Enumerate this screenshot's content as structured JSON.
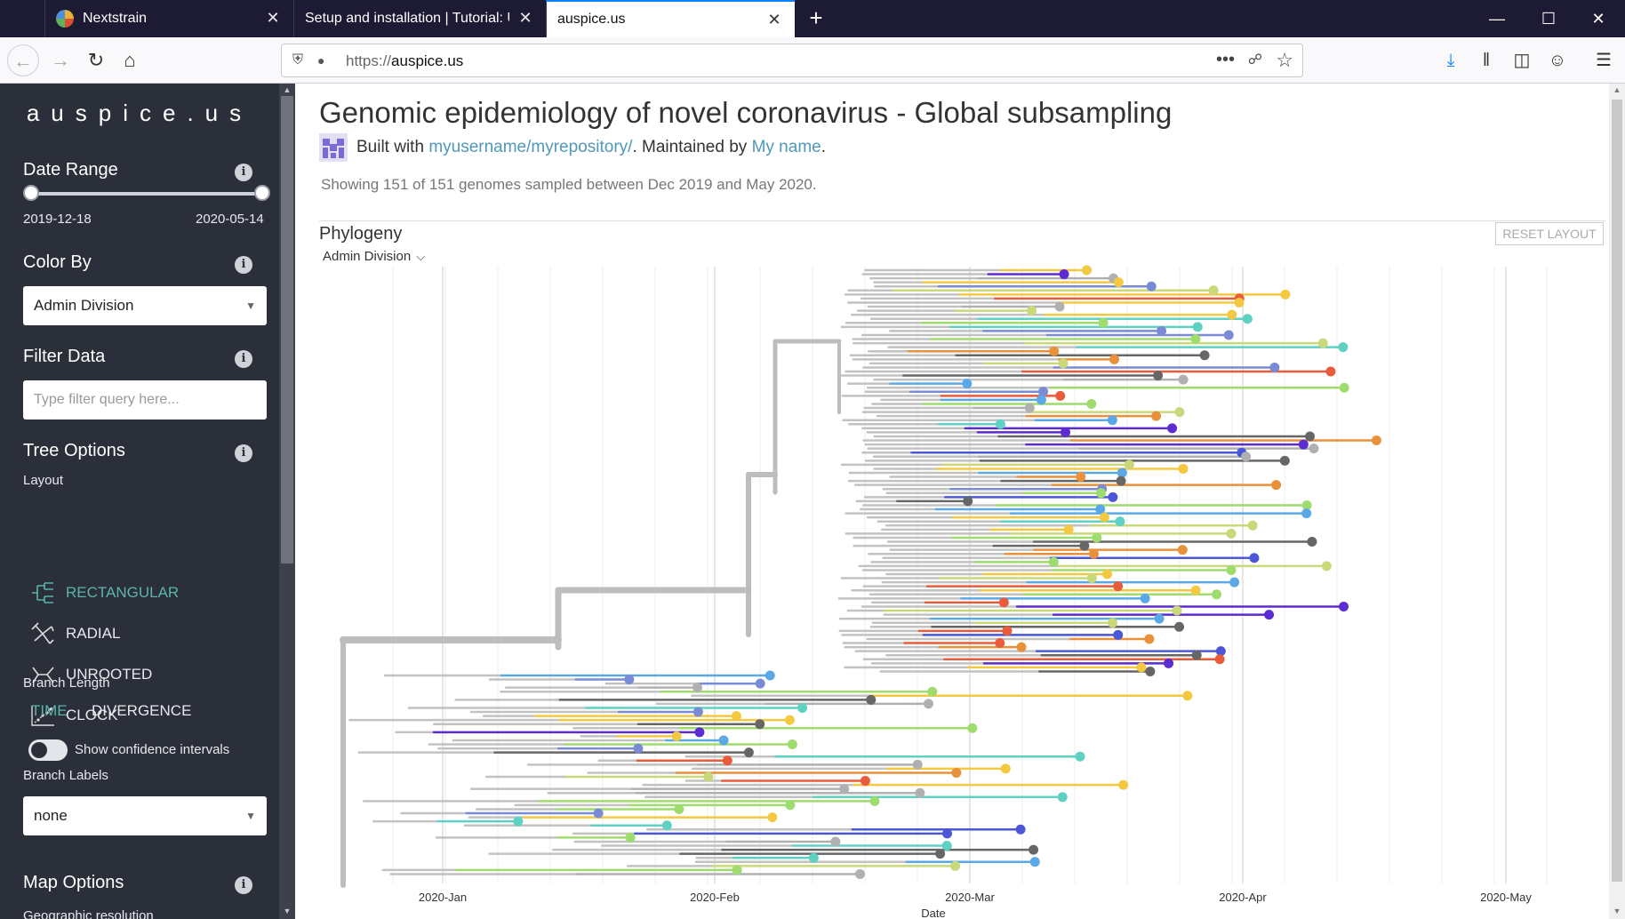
{
  "browser": {
    "tabs": [
      {
        "title": "Nextstrain",
        "active": false
      },
      {
        "title": "Setup and installation | Tutorial: Using",
        "active": false
      },
      {
        "title": "auspice.us",
        "active": true
      }
    ],
    "url_scheme": "https://",
    "url_host": "auspice.us",
    "window_controls": [
      "minimize",
      "maximize",
      "close"
    ]
  },
  "sidebar": {
    "brand": "auspice.us",
    "date_range": {
      "title": "Date Range",
      "start": "2019-12-18",
      "end": "2020-05-14"
    },
    "color_by": {
      "title": "Color By",
      "value": "Admin Division"
    },
    "filter": {
      "title": "Filter Data",
      "placeholder": "Type filter query here..."
    },
    "tree_options": {
      "title": "Tree Options",
      "layout_label": "Layout",
      "layouts": [
        {
          "label": "RECTANGULAR",
          "selected": true
        },
        {
          "label": "RADIAL",
          "selected": false
        },
        {
          "label": "UNROOTED",
          "selected": false
        },
        {
          "label": "CLOCK",
          "selected": false
        }
      ],
      "branch_length_label": "Branch Length",
      "branch_length_time": "TIME",
      "branch_length_divergence": "DIVERGENCE",
      "confidence_label": "Show confidence intervals",
      "confidence_on": false,
      "branch_labels_label": "Branch Labels",
      "branch_labels_value": "none"
    },
    "map_options": {
      "title": "Map Options",
      "partial_label": "Geographic resolution"
    }
  },
  "main": {
    "title": "Genomic epidemiology of novel coronavirus - Global subsampling",
    "byline_prefix": "Built with ",
    "byline_repo": "myusername/myrepository/",
    "byline_middle": ". Maintained by ",
    "byline_maintainer": "My name",
    "byline_end": ".",
    "summary": "Showing 151 of 151 genomes sampled between Dec 2019 and May 2020.",
    "phylogeny_title": "Phylogeny",
    "reset_layout": "RESET LAYOUT",
    "color_by_dropdown": "Admin Division",
    "x_axis_ticks": [
      "2020-Jan",
      "2020-Feb",
      "2020-Mar",
      "2020-Apr",
      "2020-May"
    ],
    "x_axis_label": "Date"
  },
  "colors": {
    "accent": "#5ab4ac",
    "link": "#5097ba",
    "sidebar_bg": "#2b2f3a",
    "tab_strip": "#1c1b33"
  }
}
